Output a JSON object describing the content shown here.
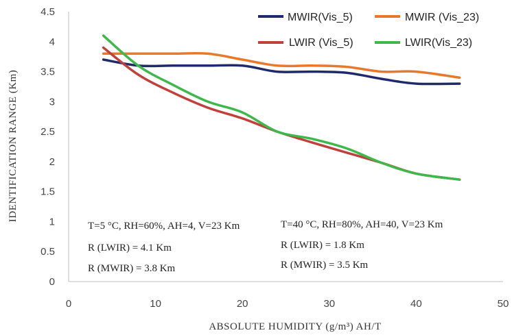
{
  "chart_data": {
    "type": "line",
    "xlabel": "ABSOLUTE HUMIDITY (g/m³) AH/T",
    "ylabel": "IDENTIFICATION RANGE (Km)",
    "xlim": [
      0,
      50
    ],
    "ylim": [
      0,
      4.5
    ],
    "xticks": [
      "0",
      "10",
      "20",
      "30",
      "40",
      "50"
    ],
    "yticks": [
      "0",
      "0.5",
      "1",
      "1.5",
      "2",
      "2.5",
      "3",
      "3.5",
      "4",
      "4.5"
    ],
    "grid": false,
    "legend_position": "top-right",
    "series": [
      {
        "name": "MWIR(Vis_5)",
        "color": "#1f2a6b",
        "x": [
          4,
          8,
          12,
          16,
          20,
          24,
          28,
          32,
          36,
          40,
          45
        ],
        "y": [
          3.7,
          3.6,
          3.6,
          3.6,
          3.6,
          3.5,
          3.5,
          3.48,
          3.38,
          3.3,
          3.3
        ]
      },
      {
        "name": "MWIR (Vis_23)",
        "color": "#e8782a",
        "x": [
          4,
          8,
          12,
          16,
          20,
          24,
          28,
          32,
          36,
          40,
          45
        ],
        "y": [
          3.8,
          3.8,
          3.8,
          3.8,
          3.7,
          3.6,
          3.6,
          3.58,
          3.5,
          3.5,
          3.4
        ]
      },
      {
        "name": "LWIR (Vis_5)",
        "color": "#c0413b",
        "x": [
          4,
          8,
          12,
          16,
          20,
          24,
          28,
          32,
          36,
          40,
          45
        ],
        "y": [
          3.9,
          3.45,
          3.15,
          2.9,
          2.72,
          2.5,
          2.32,
          2.15,
          1.98,
          1.8,
          1.7
        ]
      },
      {
        "name": "LWIR(Vis_23)",
        "color": "#3db84a",
        "x": [
          4,
          8,
          12,
          16,
          20,
          24,
          28,
          32,
          36,
          40,
          45
        ],
        "y": [
          4.1,
          3.6,
          3.28,
          3.0,
          2.82,
          2.5,
          2.38,
          2.22,
          1.98,
          1.8,
          1.7
        ]
      }
    ],
    "annotations": [
      {
        "lines": [
          "T=5 °C, RH=60%, AH=4, V=23 Km",
          "R (LWIR) = 4.1 Km",
          "R (MWIR) = 3.8 Km"
        ]
      },
      {
        "lines": [
          "T=40 °C, RH=80%, AH=40, V=23 Km",
          "R (LWIR) = 1.8 Km",
          "R (MWIR) = 3.5 Km"
        ]
      }
    ]
  }
}
